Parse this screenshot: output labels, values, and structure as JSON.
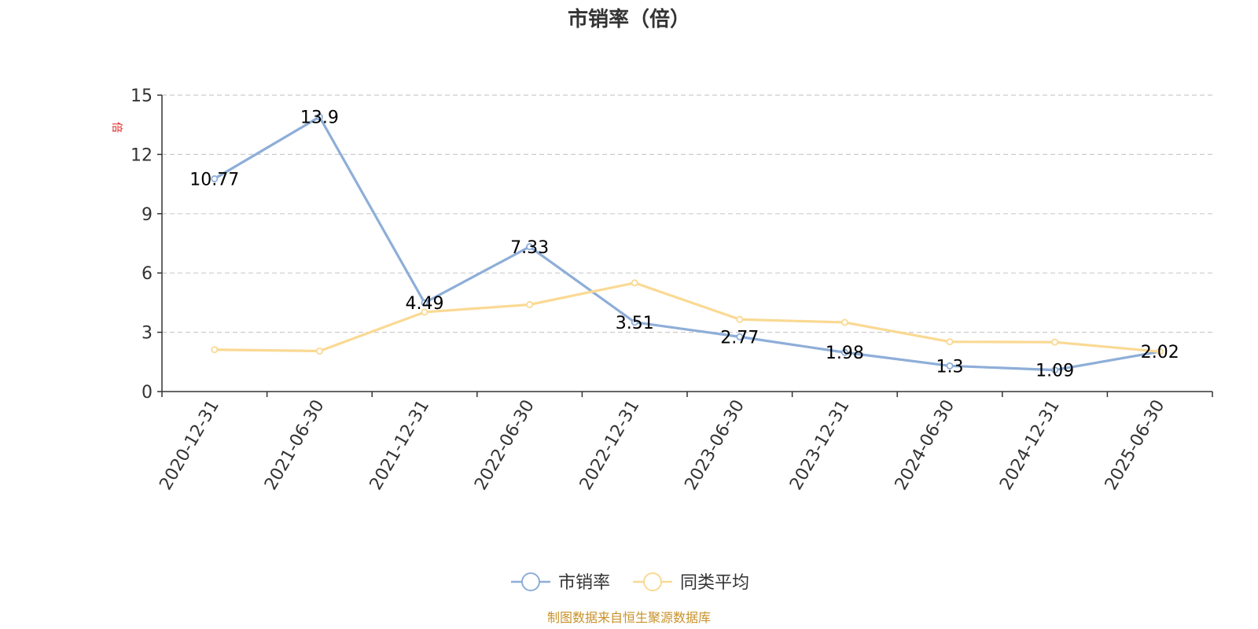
{
  "chart_data": {
    "type": "line",
    "title": "市销率（倍）",
    "ylabel": "倍",
    "categories": [
      "2020-12-31",
      "2021-06-30",
      "2021-12-31",
      "2022-06-30",
      "2022-12-31",
      "2023-06-30",
      "2023-12-31",
      "2024-06-30",
      "2024-12-31",
      "2025-06-30"
    ],
    "ylim": [
      0,
      15
    ],
    "yticks": [
      "0",
      "3",
      "6",
      "9",
      "12",
      "15"
    ],
    "grid": true,
    "legend_position": "bottom",
    "series": [
      {
        "name": "市销率",
        "color": "#8eaed8",
        "values": [
          10.77,
          13.9,
          4.49,
          7.33,
          3.51,
          2.77,
          1.98,
          1.3,
          1.09,
          2.02
        ],
        "labels": [
          "10.77",
          "13.9",
          "4.49",
          "7.33",
          "3.51",
          "2.77",
          "1.98",
          "1.3",
          "1.09",
          "2.02"
        ]
      },
      {
        "name": "同类平均",
        "color": "#fad993",
        "values": [
          2.12,
          2.05,
          4.02,
          4.4,
          5.5,
          3.65,
          3.5,
          2.52,
          2.5,
          2.02
        ]
      }
    ],
    "source": "制图数据来自恒生聚源数据库"
  }
}
